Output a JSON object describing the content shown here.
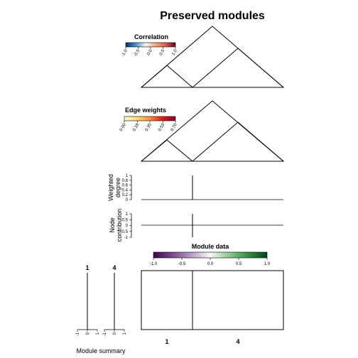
{
  "title": "Preserved modules",
  "colors": {
    "correlation": [
      "#053061",
      "#4393c3",
      "#f7f7f7",
      "#f4a582",
      "#d6604d",
      "#67001f"
    ],
    "edge_weights": [
      "#ffffcc",
      "#fed976",
      "#fd8d3c",
      "#e31a1c",
      "#800026"
    ],
    "module_data": [
      "#40004b",
      "#9970ab",
      "#f7f7f7",
      "#5aae61",
      "#00441b"
    ]
  },
  "chart_data": [
    {
      "type": "heatmap",
      "panel": "correlation",
      "legend": {
        "title": "Correlation",
        "ticks": [
          "-1.0",
          "-0.5",
          "0.0",
          "0.5",
          "1.0"
        ],
        "range": [
          -1,
          1
        ]
      },
      "modules": [
        "1",
        "4"
      ],
      "module_sizes": [
        1,
        2
      ]
    },
    {
      "type": "heatmap",
      "panel": "edge_weights",
      "legend": {
        "title": "Edge weights",
        "ticks": [
          "0.00",
          "0.18",
          "0.35",
          "0.53",
          "0.70"
        ],
        "range": [
          0,
          0.7
        ]
      }
    },
    {
      "type": "bar",
      "panel": "weighted_degree",
      "ylabel": "Weighted degree",
      "yticks": [
        "0",
        "0.2",
        "0.4",
        "0.6",
        "0.8",
        "1"
      ],
      "ylim": [
        0,
        1
      ]
    },
    {
      "type": "bar",
      "panel": "node_contribution",
      "ylabel": "Node contribution",
      "yticks": [
        "-1",
        "-0.5",
        "0",
        "0.5",
        "1"
      ],
      "ylim": [
        -1,
        1
      ]
    },
    {
      "type": "heatmap",
      "panel": "module_data",
      "legend": {
        "title": "Module data",
        "ticks": [
          "-1.0",
          "-0.5",
          "0.0",
          "0.5",
          "1.0"
        ],
        "range": [
          -1,
          1
        ]
      },
      "xticks": [
        "1",
        "4"
      ]
    },
    {
      "type": "bar",
      "panel": "module_summary",
      "xlabel": "Module summary",
      "modules": [
        "1",
        "4"
      ],
      "xticks": [
        "-1",
        "0",
        "1"
      ],
      "xlim": [
        -1,
        1
      ]
    }
  ]
}
